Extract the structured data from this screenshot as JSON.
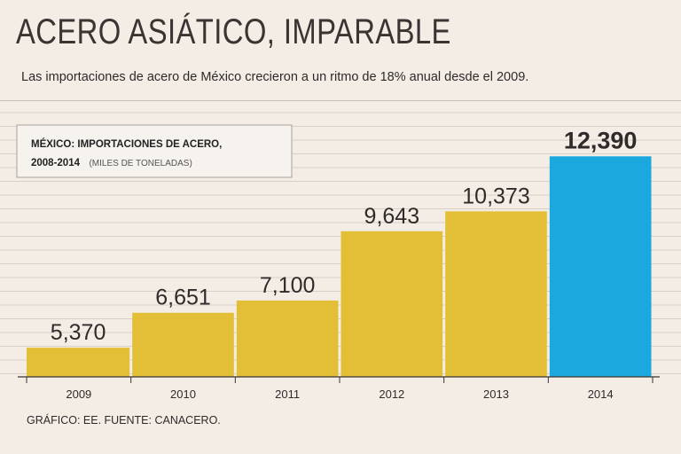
{
  "header": {
    "title": "ACERO ASIÁTICO, IMPARABLE",
    "subtitle": "Las importaciones de acero de México crecieron a un ritmo de 18% anual desde el 2009."
  },
  "legend_box": {
    "title_line1": "MÉXICO: IMPORTACIONES DE ACERO,",
    "title_line2": "2008-2014",
    "unit": "(MILES DE TONELADAS)"
  },
  "footer": {
    "source": "GRÁFICO: EE. FUENTE: CANACERO."
  },
  "colors": {
    "bar": "#e3bf38",
    "highlight": "#1ba8df",
    "background": "#f3ede6",
    "grid": "#d9cfc8"
  },
  "chart_data": {
    "type": "bar",
    "title": "MÉXICO: IMPORTACIONES DE ACERO, 2008-2014 (MILES DE TONELADAS)",
    "categories": [
      "2009",
      "2010",
      "2011",
      "2012",
      "2013",
      "2014"
    ],
    "values": [
      5370,
      6651,
      7100,
      9643,
      10373,
      12390
    ],
    "value_labels": [
      "5,370",
      "6,651",
      "7,100",
      "9,643",
      "10,373",
      "12,390"
    ],
    "highlight_index": 5,
    "xlabel": "",
    "ylabel": "",
    "ylim": [
      4300,
      12400
    ],
    "grid": true
  }
}
